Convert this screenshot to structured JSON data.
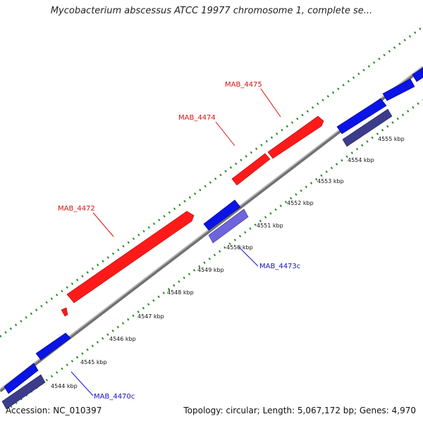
{
  "title": "Mycobacterium abscessus ATCC 19977 chromosome 1, complete se...",
  "accession_text": "Accession: NC_010397",
  "summary_text": "Topology: circular; Length: 5,067,172 bp; Genes: 4,970",
  "colors": {
    "backbone": "#8a8a8a",
    "forward_gene": "#ff1a1a",
    "reverse_gene": "#0a14e6",
    "reverse_cds_dark": "#3c3c8c",
    "reverse_cds_light": "#6e64dc",
    "tick_dots": "#2a8a2a",
    "forward_label": "#dd1111",
    "reverse_label": "#1111cc"
  },
  "kbp_ticks": [
    "4544 kbp",
    "4545 kbp",
    "4546 kbp",
    "4547 kbp",
    "4548 kbp",
    "4549 kbp",
    "4550 kbp",
    "4551 kbp",
    "4552 kbp",
    "4553 kbp",
    "4554 kbp",
    "4555 kbp"
  ],
  "gene_labels": {
    "mab_4475": "MAB_4475",
    "mab_4474": "MAB_4474",
    "mab_4472": "MAB_4472",
    "mab_4473c": "MAB_4473c",
    "mab_4470c": "MAB_4470c"
  }
}
